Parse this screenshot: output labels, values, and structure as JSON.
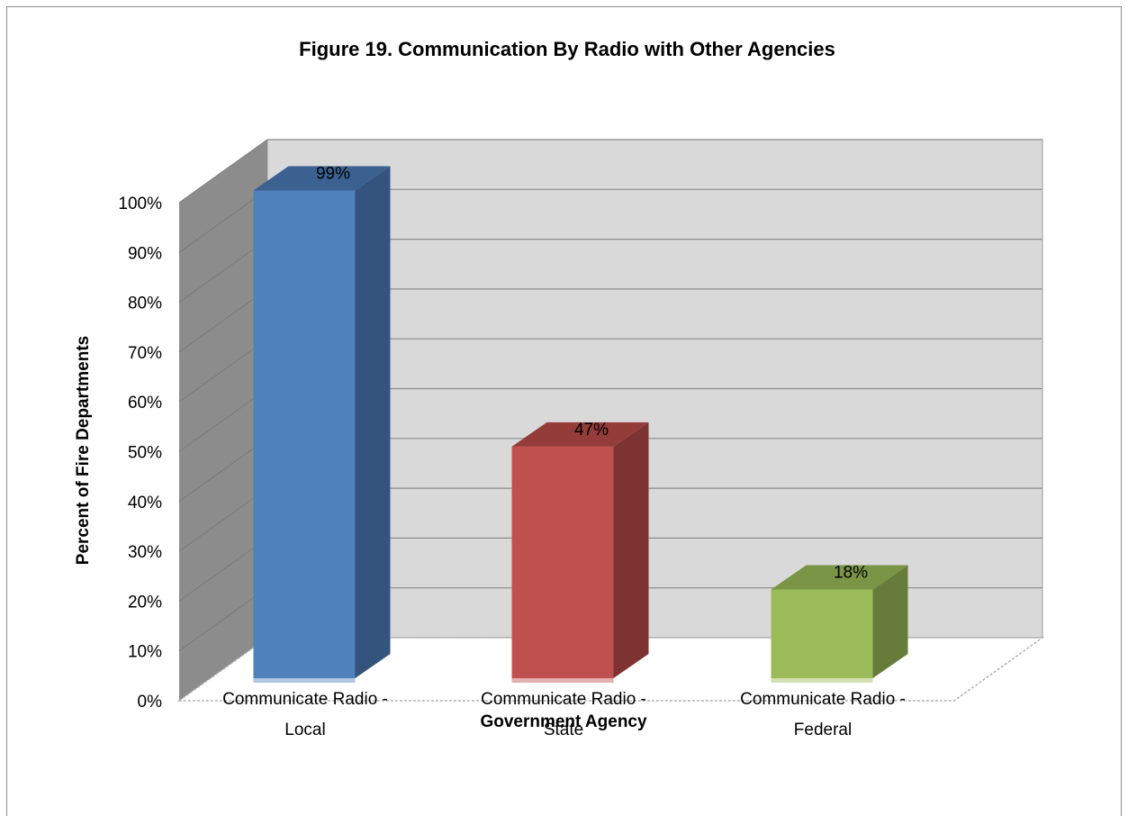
{
  "chart_data": {
    "type": "bar",
    "title": "Figure 19. Communication By Radio with Other Agencies",
    "xlabel": "Government Agency",
    "ylabel": "Percent of Fire Departments",
    "categories": [
      [
        "Communicate Radio -",
        "Local"
      ],
      [
        "Communicate Radio -",
        "State"
      ],
      [
        "Communicate Radio -",
        "Federal"
      ]
    ],
    "values": [
      99,
      47,
      18
    ],
    "data_labels": [
      "99%",
      "47%",
      "18%"
    ],
    "yticks": [
      "0%",
      "10%",
      "20%",
      "30%",
      "40%",
      "50%",
      "60%",
      "70%",
      "80%",
      "90%",
      "100%"
    ],
    "ylim": [
      0,
      100
    ],
    "grid": true,
    "style": "3d-column",
    "colors": {
      "front": [
        "#4f81bd",
        "#c0504d",
        "#9bbb59"
      ],
      "side": [
        "#34547e",
        "#7d3331",
        "#677c3b"
      ],
      "top": [
        "#3b6191",
        "#933c3a",
        "#7a9546"
      ],
      "wall": "#d9d9d9",
      "side_wall": "#8c8c8c",
      "gridline": "#8c8c8c"
    }
  }
}
